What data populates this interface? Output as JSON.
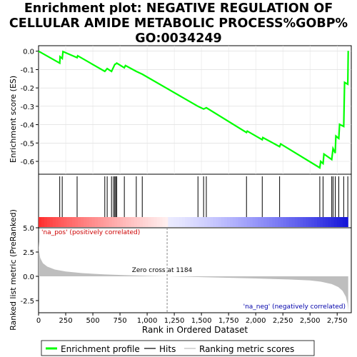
{
  "title_lines": [
    "Enrichment plot: NEGATIVE REGULATION OF",
    "CELLULAR AMIDE METABOLIC PROCESS%GOBP%",
    "GO:0034249"
  ],
  "colors": {
    "es_line": "#00ff00",
    "hit": "#000000",
    "metric_fill": "#bebebe",
    "pos_label": "#cc0000",
    "neg_label": "#0000aa"
  },
  "chart_data": [
    {
      "type": "line",
      "panel": "enrichment-score",
      "ylabel": "Enrichment score (ES)",
      "ylim": [
        -0.67,
        0.03
      ],
      "yticks": [
        0.0,
        -0.1,
        -0.2,
        -0.3,
        -0.4,
        -0.5,
        -0.6
      ],
      "ytick_labels": [
        "0.0",
        "-0.1",
        "-0.2",
        "-0.3",
        "-0.4",
        "-0.5",
        "-0.6"
      ],
      "xlim": [
        0,
        2880
      ],
      "points": [
        [
          0,
          0.0
        ],
        [
          195,
          -0.065
        ],
        [
          198,
          -0.03
        ],
        [
          218,
          -0.04
        ],
        [
          225,
          -0.002
        ],
        [
          355,
          -0.035
        ],
        [
          360,
          -0.025
        ],
        [
          610,
          -0.11
        ],
        [
          632,
          -0.095
        ],
        [
          672,
          -0.11
        ],
        [
          690,
          -0.088
        ],
        [
          702,
          -0.072
        ],
        [
          710,
          -0.07
        ],
        [
          720,
          -0.065
        ],
        [
          790,
          -0.09
        ],
        [
          800,
          -0.078
        ],
        [
          900,
          -0.11
        ],
        [
          955,
          -0.125
        ],
        [
          1468,
          -0.3
        ],
        [
          1520,
          -0.315
        ],
        [
          1545,
          -0.308
        ],
        [
          1915,
          -0.443
        ],
        [
          1922,
          -0.435
        ],
        [
          2060,
          -0.482
        ],
        [
          2065,
          -0.47
        ],
        [
          2220,
          -0.52
        ],
        [
          2230,
          -0.505
        ],
        [
          2590,
          -0.635
        ],
        [
          2598,
          -0.6
        ],
        [
          2620,
          -0.612
        ],
        [
          2628,
          -0.56
        ],
        [
          2700,
          -0.59
        ],
        [
          2712,
          -0.53
        ],
        [
          2732,
          -0.555
        ],
        [
          2738,
          -0.462
        ],
        [
          2765,
          -0.475
        ],
        [
          2772,
          -0.398
        ],
        [
          2810,
          -0.41
        ],
        [
          2818,
          -0.17
        ],
        [
          2848,
          -0.18
        ],
        [
          2852,
          0.002
        ]
      ]
    },
    {
      "type": "scatter",
      "panel": "hits",
      "series_name": "Hits",
      "x": [
        195,
        218,
        355,
        610,
        632,
        672,
        690,
        702,
        710,
        720,
        790,
        900,
        955,
        1468,
        1520,
        1545,
        1915,
        2060,
        2220,
        2590,
        2620,
        2700,
        2712,
        2732,
        2765,
        2810,
        2848
      ]
    },
    {
      "type": "area",
      "panel": "ranked-list-metric",
      "ylabel": "Ranked list metric (PreRanked)",
      "xlabel": "Rank in Ordered Dataset",
      "ylim": [
        -3.75,
        5.0
      ],
      "yticks": [
        5.0,
        2.5,
        0.0,
        -2.5
      ],
      "ytick_labels": [
        "5.0",
        "2.5",
        "0.0",
        "-2.5"
      ],
      "xlim": [
        0,
        2880
      ],
      "xticks": [
        0,
        250,
        500,
        750,
        1000,
        1250,
        1500,
        1750,
        2000,
        2250,
        2500,
        2750
      ],
      "xtick_labels": [
        "0",
        "250",
        "500",
        "750",
        "1,000",
        "1,250",
        "1,500",
        "1,750",
        "2,000",
        "2,250",
        "2,500",
        "2,750"
      ],
      "points": [
        [
          0,
          3.6
        ],
        [
          5,
          2.6
        ],
        [
          15,
          1.9
        ],
        [
          40,
          1.35
        ],
        [
          80,
          1.0
        ],
        [
          150,
          0.7
        ],
        [
          250,
          0.5
        ],
        [
          400,
          0.33
        ],
        [
          600,
          0.2
        ],
        [
          800,
          0.12
        ],
        [
          1000,
          0.06
        ],
        [
          1184,
          0.0
        ],
        [
          1400,
          -0.06
        ],
        [
          1700,
          -0.14
        ],
        [
          2000,
          -0.22
        ],
        [
          2300,
          -0.32
        ],
        [
          2500,
          -0.42
        ],
        [
          2600,
          -0.55
        ],
        [
          2700,
          -0.8
        ],
        [
          2760,
          -1.1
        ],
        [
          2800,
          -1.5
        ],
        [
          2830,
          -2.1
        ],
        [
          2845,
          -2.8
        ],
        [
          2852,
          -3.6
        ]
      ],
      "zero_cross_label": "Zero cross at 1184",
      "zero_cross_x": 1184,
      "pos_label": "'na_pos' (positively correlated)",
      "neg_label": "'na_neg' (negatively correlated)"
    }
  ],
  "legend": {
    "items": [
      {
        "label": "Enrichment profile",
        "kind": "es"
      },
      {
        "label": "Hits",
        "kind": "hit"
      },
      {
        "label": "Ranking metric scores",
        "kind": "metric"
      }
    ]
  }
}
